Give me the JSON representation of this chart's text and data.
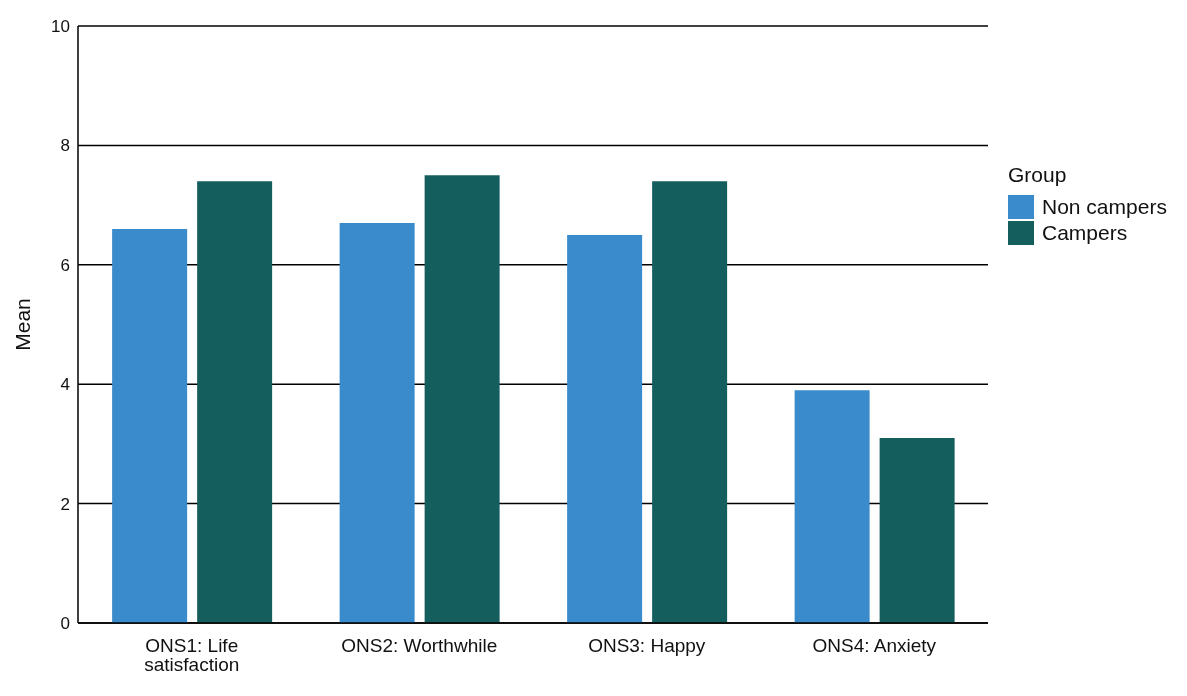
{
  "chart_data": {
    "type": "bar",
    "ylabel": "Mean",
    "legend_title": "Group",
    "categories": [
      "ONS1: Life satisfaction",
      "ONS2: Worthwhile",
      "ONS3: Happy",
      "ONS4: Anxiety"
    ],
    "series": [
      {
        "name": "Non campers",
        "color": "#3a8bcc",
        "values": [
          6.6,
          6.7,
          6.5,
          3.9
        ]
      },
      {
        "name": "Campers",
        "color": "#155e5e",
        "values": [
          7.4,
          7.5,
          7.4,
          3.1
        ]
      }
    ],
    "ylim": [
      0,
      10
    ],
    "yticks": [
      0,
      2,
      4,
      6,
      8,
      10
    ],
    "grid": "y",
    "legend": "right"
  }
}
